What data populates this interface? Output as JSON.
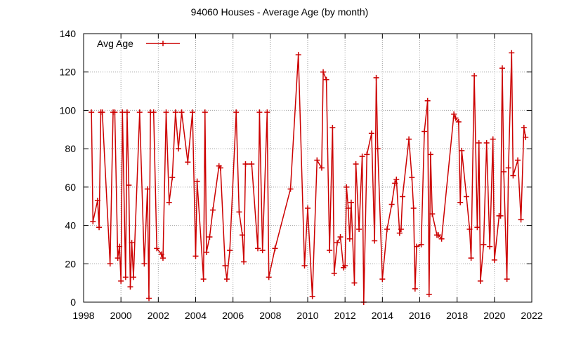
{
  "chart_data": {
    "type": "line",
    "title": "94060 Houses - Average Age (by month)",
    "xlabel": "",
    "ylabel": "",
    "xlim": [
      1998,
      2022
    ],
    "ylim": [
      0,
      140
    ],
    "x_ticks": [
      "1998",
      "2000",
      "2002",
      "2004",
      "2006",
      "2008",
      "2010",
      "2012",
      "2014",
      "2016",
      "2018",
      "2020",
      "2022"
    ],
    "y_ticks": [
      "0",
      "20",
      "40",
      "60",
      "80",
      "100",
      "120",
      "140"
    ],
    "grid": true,
    "legend_position": "top-left",
    "series": [
      {
        "name": "Avg Age",
        "color": "#cc0000",
        "marker": "plus",
        "points": [
          [
            1998.42,
            99
          ],
          [
            1998.5,
            42
          ],
          [
            1998.75,
            53
          ],
          [
            1998.83,
            39
          ],
          [
            1998.92,
            99
          ],
          [
            1999.0,
            99
          ],
          [
            1999.42,
            20
          ],
          [
            1999.58,
            99
          ],
          [
            1999.67,
            99
          ],
          [
            1999.83,
            23
          ],
          [
            1999.92,
            29
          ],
          [
            2000.0,
            11
          ],
          [
            2000.08,
            99
          ],
          [
            2000.25,
            13
          ],
          [
            2000.33,
            99
          ],
          [
            2000.42,
            61
          ],
          [
            2000.5,
            8
          ],
          [
            2000.58,
            31
          ],
          [
            2000.67,
            13
          ],
          [
            2001.0,
            99
          ],
          [
            2001.25,
            20
          ],
          [
            2001.42,
            59
          ],
          [
            2001.5,
            2
          ],
          [
            2001.58,
            99
          ],
          [
            2001.75,
            99
          ],
          [
            2001.92,
            28
          ],
          [
            2002.17,
            25
          ],
          [
            2002.25,
            23
          ],
          [
            2002.42,
            99
          ],
          [
            2002.58,
            52
          ],
          [
            2002.75,
            65
          ],
          [
            2002.92,
            99
          ],
          [
            2003.08,
            80
          ],
          [
            2003.25,
            99
          ],
          [
            2003.58,
            73
          ],
          [
            2003.83,
            99
          ],
          [
            2004.0,
            24
          ],
          [
            2004.08,
            63
          ],
          [
            2004.42,
            12
          ],
          [
            2004.5,
            99
          ],
          [
            2004.58,
            26
          ],
          [
            2004.75,
            34
          ],
          [
            2004.92,
            48
          ],
          [
            2005.25,
            71
          ],
          [
            2005.33,
            70
          ],
          [
            2005.58,
            19
          ],
          [
            2005.67,
            12
          ],
          [
            2005.83,
            27
          ],
          [
            2006.17,
            99
          ],
          [
            2006.33,
            47
          ],
          [
            2006.5,
            35
          ],
          [
            2006.58,
            21
          ],
          [
            2006.67,
            72
          ],
          [
            2007.0,
            72
          ],
          [
            2007.33,
            28
          ],
          [
            2007.42,
            99
          ],
          [
            2007.58,
            27
          ],
          [
            2007.83,
            99
          ],
          [
            2007.92,
            13
          ],
          [
            2008.25,
            28
          ],
          [
            2009.08,
            59
          ],
          [
            2009.5,
            129
          ],
          [
            2009.83,
            19
          ],
          [
            2010.0,
            49
          ],
          [
            2010.25,
            3
          ],
          [
            2010.5,
            74
          ],
          [
            2010.75,
            70
          ],
          [
            2010.83,
            120
          ],
          [
            2011.0,
            116
          ],
          [
            2011.17,
            27
          ],
          [
            2011.33,
            91
          ],
          [
            2011.42,
            15
          ],
          [
            2011.58,
            31
          ],
          [
            2011.75,
            34
          ],
          [
            2011.92,
            18
          ],
          [
            2012.0,
            19
          ],
          [
            2012.08,
            60
          ],
          [
            2012.17,
            49
          ],
          [
            2012.25,
            33
          ],
          [
            2012.33,
            52
          ],
          [
            2012.5,
            10
          ],
          [
            2012.58,
            72
          ],
          [
            2012.75,
            38
          ],
          [
            2012.92,
            76
          ],
          [
            2013.0,
            0
          ],
          [
            2013.17,
            77
          ],
          [
            2013.42,
            88
          ],
          [
            2013.58,
            32
          ],
          [
            2013.67,
            117
          ],
          [
            2013.75,
            80
          ],
          [
            2014.0,
            12
          ],
          [
            2014.25,
            38
          ],
          [
            2014.5,
            51
          ],
          [
            2014.67,
            62
          ],
          [
            2014.75,
            64
          ],
          [
            2014.92,
            36
          ],
          [
            2015.0,
            38
          ],
          [
            2015.08,
            55
          ],
          [
            2015.42,
            85
          ],
          [
            2015.58,
            65
          ],
          [
            2015.67,
            49
          ],
          [
            2015.75,
            7
          ],
          [
            2015.83,
            29
          ],
          [
            2016.08,
            30
          ],
          [
            2016.25,
            89
          ],
          [
            2016.42,
            105
          ],
          [
            2016.5,
            4
          ],
          [
            2016.58,
            77
          ],
          [
            2016.67,
            46
          ],
          [
            2016.92,
            35
          ],
          [
            2017.0,
            35
          ],
          [
            2017.17,
            33
          ],
          [
            2017.83,
            98
          ],
          [
            2017.92,
            96
          ],
          [
            2018.08,
            94
          ],
          [
            2018.17,
            52
          ],
          [
            2018.25,
            79
          ],
          [
            2018.5,
            55
          ],
          [
            2018.67,
            38
          ],
          [
            2018.75,
            23
          ],
          [
            2018.92,
            118
          ],
          [
            2019.08,
            39
          ],
          [
            2019.17,
            83
          ],
          [
            2019.25,
            11
          ],
          [
            2019.42,
            30
          ],
          [
            2019.58,
            83
          ],
          [
            2019.75,
            29
          ],
          [
            2019.92,
            85
          ],
          [
            2020.0,
            22
          ],
          [
            2020.25,
            45
          ],
          [
            2020.33,
            45
          ],
          [
            2020.42,
            122
          ],
          [
            2020.5,
            68
          ],
          [
            2020.67,
            12
          ],
          [
            2020.75,
            70
          ],
          [
            2020.92,
            130
          ],
          [
            2021.0,
            66
          ],
          [
            2021.25,
            74
          ],
          [
            2021.42,
            43
          ],
          [
            2021.58,
            91
          ],
          [
            2021.67,
            86
          ]
        ]
      }
    ]
  }
}
